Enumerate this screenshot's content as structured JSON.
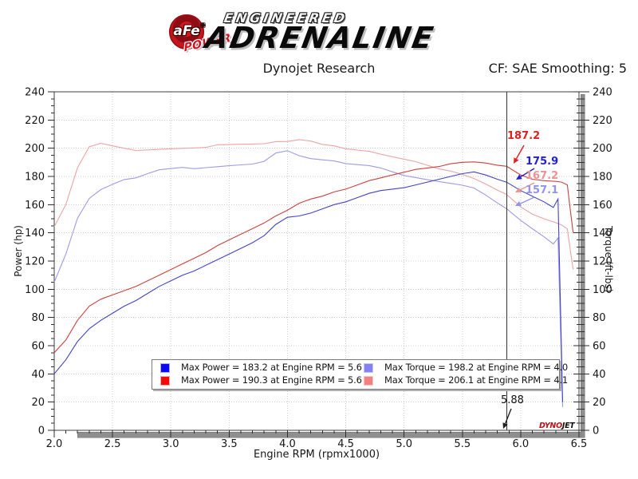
{
  "header": {
    "brand": {
      "circle_text": "aFe",
      "reg_mark": "®",
      "power_text": "POWER",
      "line1": "ENGINEERED",
      "line2": "ADRENALINE"
    },
    "title": "Dynojet Research",
    "cf_label": "CF: SAE Smoothing: 5"
  },
  "watermark": {
    "part1": "DYNO",
    "part2": "JET"
  },
  "chart_data": {
    "type": "line",
    "title": "Dynojet Research",
    "xlabel": "Engine RPM (rpmx1000)",
    "ylabel_left": "Power (hp)",
    "ylabel_right": "Torque (ft-lbs)",
    "xlim": [
      2.0,
      6.5
    ],
    "ylim": [
      0,
      240
    ],
    "x_ticks": [
      "2.0",
      "2.5",
      "3.0",
      "3.5",
      "4.0",
      "4.5",
      "5.0",
      "5.5",
      "6.0",
      "6.5"
    ],
    "y_ticks": [
      "0",
      "20",
      "40",
      "60",
      "80",
      "100",
      "120",
      "140",
      "160",
      "180",
      "200",
      "220",
      "240"
    ],
    "grid": true,
    "legend_position": "inside-bottom-center",
    "cursor": {
      "rpm": 5.88,
      "label": "5.88"
    },
    "annotations": [
      {
        "label": "187.2",
        "value": 187.2,
        "color": "#e41f1f",
        "series": "power-red"
      },
      {
        "label": "175.9",
        "value": 175.9,
        "color": "#2222cc",
        "series": "power-blue"
      },
      {
        "label": "167.2",
        "value": 167.2,
        "color": "#ef9292",
        "series": "torque-red"
      },
      {
        "label": "157.1",
        "value": 157.1,
        "color": "#9292ef",
        "series": "torque-blue"
      }
    ],
    "series": [
      {
        "id": "power-blue",
        "axis": "left",
        "color": "#4343cb",
        "swatch_fill": "#0a0af0",
        "swatch_border": "#a9a9f5",
        "legend_label": "Max Power = 183.2 at Engine RPM = 5.6",
        "max_value": 183.2,
        "max_rpm": 5.6,
        "x": [
          2.0,
          2.1,
          2.2,
          2.3,
          2.4,
          2.5,
          2.6,
          2.7,
          2.8,
          2.9,
          3.0,
          3.1,
          3.2,
          3.3,
          3.4,
          3.5,
          3.6,
          3.7,
          3.8,
          3.9,
          4.0,
          4.1,
          4.2,
          4.3,
          4.4,
          4.5,
          4.6,
          4.7,
          4.8,
          4.9,
          5.0,
          5.1,
          5.2,
          5.3,
          5.4,
          5.5,
          5.6,
          5.7,
          5.8,
          5.88,
          6.0,
          6.1,
          6.2,
          6.28,
          6.32,
          6.36
        ],
        "y": [
          40,
          50,
          63,
          72,
          78,
          83,
          88,
          92,
          97,
          102,
          106,
          110,
          113,
          117,
          121,
          125,
          129,
          133,
          138,
          146,
          151,
          152,
          154,
          157,
          160,
          162,
          165,
          168,
          170,
          171,
          172,
          174,
          176,
          178,
          180,
          182,
          183.2,
          181,
          178,
          175.9,
          170,
          166,
          162,
          158,
          164,
          20
        ]
      },
      {
        "id": "power-red",
        "axis": "left",
        "color": "#cf4040",
        "swatch_fill": "#f00a0a",
        "swatch_border": "#f5a9a9",
        "legend_label": "Max Power = 190.3 at Engine RPM = 5.6",
        "max_value": 190.3,
        "max_rpm": 5.6,
        "x": [
          2.0,
          2.1,
          2.2,
          2.3,
          2.4,
          2.5,
          2.6,
          2.7,
          2.8,
          2.9,
          3.0,
          3.1,
          3.2,
          3.3,
          3.4,
          3.5,
          3.6,
          3.7,
          3.8,
          3.9,
          4.0,
          4.1,
          4.2,
          4.3,
          4.4,
          4.5,
          4.6,
          4.7,
          4.8,
          4.9,
          5.0,
          5.1,
          5.2,
          5.3,
          5.4,
          5.5,
          5.6,
          5.7,
          5.8,
          5.88,
          6.0,
          6.1,
          6.2,
          6.3,
          6.35,
          6.4,
          6.42,
          6.45
        ],
        "y": [
          55,
          64,
          78,
          88,
          93,
          96,
          99,
          102,
          106,
          110,
          114,
          118,
          122,
          126,
          131,
          135,
          139,
          143,
          147,
          152,
          156,
          161,
          164,
          166,
          169,
          171,
          174,
          177,
          179,
          181,
          183,
          185,
          186,
          187,
          189,
          190,
          190.3,
          189.5,
          188,
          187.2,
          181,
          178,
          177,
          176.5,
          176,
          174,
          160,
          140
        ]
      },
      {
        "id": "torque-blue",
        "axis": "right",
        "color": "#9c9ce6",
        "swatch_fill": "#8282f2",
        "swatch_border": "#c6c6fa",
        "legend_label": "Max Torque = 198.2 at Engine RPM = 4.0",
        "max_value": 198.2,
        "max_rpm": 4.0,
        "x": [
          2.0,
          2.1,
          2.2,
          2.3,
          2.4,
          2.5,
          2.6,
          2.7,
          2.8,
          2.9,
          3.0,
          3.1,
          3.2,
          3.3,
          3.4,
          3.5,
          3.6,
          3.7,
          3.8,
          3.9,
          4.0,
          4.1,
          4.2,
          4.3,
          4.4,
          4.5,
          4.6,
          4.7,
          4.8,
          4.9,
          5.0,
          5.1,
          5.2,
          5.3,
          5.4,
          5.5,
          5.6,
          5.7,
          5.8,
          5.88,
          6.0,
          6.1,
          6.2,
          6.28,
          6.32,
          6.36
        ],
        "y": [
          105.0,
          125.0,
          150.4,
          164.4,
          170.7,
          174.4,
          177.8,
          179.0,
          182.0,
          184.7,
          185.6,
          186.4,
          185.5,
          186.2,
          186.9,
          187.6,
          188.2,
          188.8,
          190.7,
          196.6,
          198.2,
          194.7,
          192.6,
          191.8,
          191.0,
          189.1,
          188.4,
          187.7,
          186.0,
          183.3,
          180.7,
          179.2,
          177.7,
          176.4,
          175.1,
          173.8,
          171.8,
          166.8,
          161.2,
          157.1,
          148.8,
          142.9,
          137.2,
          132.1,
          136.3,
          16.5
        ]
      },
      {
        "id": "torque-red",
        "axis": "right",
        "color": "#eca4a4",
        "swatch_fill": "#f28282",
        "swatch_border": "#fac6c6",
        "legend_label": "Max Torque = 206.1 at Engine RPM = 4.1",
        "max_value": 206.1,
        "max_rpm": 4.1,
        "x": [
          2.0,
          2.1,
          2.2,
          2.3,
          2.4,
          2.5,
          2.6,
          2.7,
          2.8,
          2.9,
          3.0,
          3.1,
          3.2,
          3.3,
          3.4,
          3.5,
          3.6,
          3.7,
          3.8,
          3.9,
          4.0,
          4.1,
          4.2,
          4.3,
          4.4,
          4.5,
          4.6,
          4.7,
          4.8,
          4.9,
          5.0,
          5.1,
          5.2,
          5.3,
          5.4,
          5.5,
          5.6,
          5.7,
          5.8,
          5.88,
          6.0,
          6.1,
          6.2,
          6.3,
          6.35,
          6.4,
          6.42,
          6.45
        ],
        "y": [
          144.4,
          160.1,
          186.2,
          201.0,
          203.5,
          201.7,
          200.0,
          198.4,
          198.8,
          199.2,
          199.6,
          199.9,
          200.2,
          200.6,
          202.4,
          202.6,
          202.8,
          203.0,
          203.2,
          204.7,
          204.8,
          206.1,
          205.1,
          202.7,
          201.7,
          199.6,
          198.7,
          197.8,
          195.8,
          194.0,
          192.2,
          190.5,
          187.9,
          185.3,
          183.8,
          181.4,
          178.5,
          174.6,
          170.3,
          167.2,
          158.4,
          153.3,
          150.0,
          147.2,
          145.6,
          142.8,
          130.9,
          114.0
        ]
      }
    ]
  }
}
